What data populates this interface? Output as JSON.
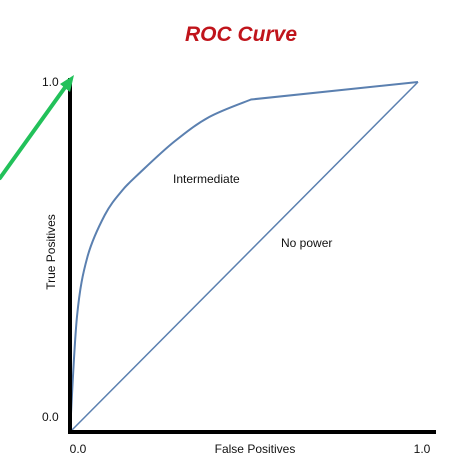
{
  "chart_data": {
    "type": "line",
    "title": "ROC Curve",
    "xlabel": "False Positives",
    "ylabel": "True Positives",
    "xlim": [
      0,
      1
    ],
    "ylim": [
      0,
      1
    ],
    "x_ticks": [
      "0.0",
      "1.0"
    ],
    "y_ticks": [
      "0.0",
      "1.0"
    ],
    "grid": false,
    "legend": "none",
    "series": [
      {
        "name": "Intermediate",
        "x": [
          0.0,
          0.02,
          0.05,
          0.1,
          0.15,
          0.2,
          0.3,
          0.4,
          0.52,
          1.0
        ],
        "y": [
          0.0,
          0.33,
          0.5,
          0.62,
          0.69,
          0.74,
          0.83,
          0.9,
          0.95,
          1.0
        ]
      },
      {
        "name": "No power",
        "x": [
          0.0,
          1.0
        ],
        "y": [
          0.0,
          1.0
        ]
      }
    ],
    "annotations": [
      {
        "type": "arrow",
        "target": [
          0.0,
          1.0
        ],
        "color": "#22c15a"
      }
    ],
    "colors": {
      "curve": "#5b80b0",
      "axes": "#000000",
      "title": "#c0141b",
      "arrow": "#22c15a"
    }
  }
}
